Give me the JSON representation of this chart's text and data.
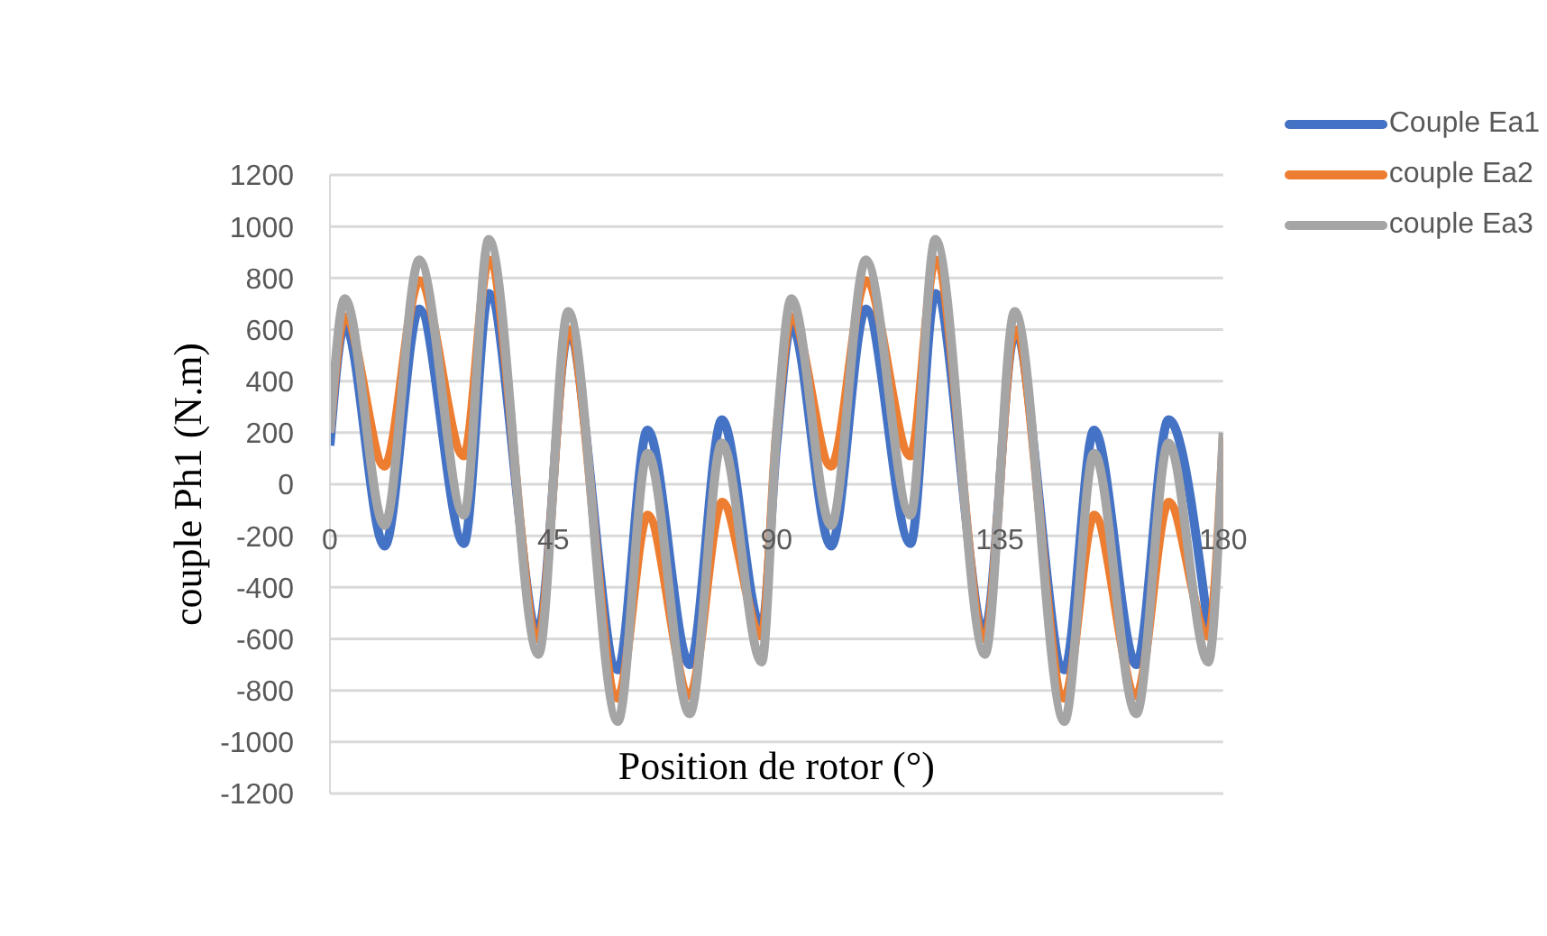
{
  "chart_data": {
    "type": "line",
    "xlabel": "Position de rotor (°)",
    "ylabel": "couple Ph1 (N.m)",
    "x": [
      0,
      3,
      11,
      18,
      27,
      32,
      42,
      48,
      58,
      64,
      72.5,
      79,
      87,
      90,
      93,
      101,
      108,
      117,
      122,
      132,
      138,
      148,
      154,
      162.5,
      169,
      177,
      180
    ],
    "series": [
      {
        "name": "Couple Ea1",
        "color": "#4472c4",
        "values": [
          150,
          620,
          -240,
          680,
          -230,
          740,
          -560,
          580,
          -720,
          210,
          -700,
          250,
          -560,
          150,
          620,
          -240,
          680,
          -230,
          740,
          -560,
          580,
          -720,
          210,
          -700,
          250,
          -560,
          null
        ]
      },
      {
        "name": "couple Ea2",
        "color": "#ed7d31",
        "values": [
          200,
          650,
          70,
          790,
          110,
          870,
          -600,
          600,
          -830,
          -120,
          -820,
          -70,
          -590,
          200,
          650,
          70,
          790,
          110,
          870,
          -600,
          600,
          -830,
          -120,
          -820,
          -70,
          -590,
          180
        ]
      },
      {
        "name": "couple Ea3",
        "color": "#a5a5a5",
        "values": [
          200,
          720,
          -160,
          870,
          -120,
          950,
          -660,
          670,
          -920,
          120,
          -890,
          160,
          -690,
          200,
          720,
          -160,
          870,
          -120,
          950,
          -660,
          670,
          -920,
          120,
          -890,
          160,
          -690,
          200
        ]
      }
    ],
    "xlim": [
      0,
      180
    ],
    "xticks": [
      0,
      45,
      90,
      135,
      180
    ],
    "ylim": [
      -1200,
      1200
    ],
    "yticks": [
      -1200,
      -1000,
      -800,
      -600,
      -400,
      -200,
      0,
      200,
      400,
      600,
      800,
      1000,
      1200
    ],
    "grid": "y",
    "legend": "top right",
    "marker": "none",
    "line_style": "solid"
  }
}
